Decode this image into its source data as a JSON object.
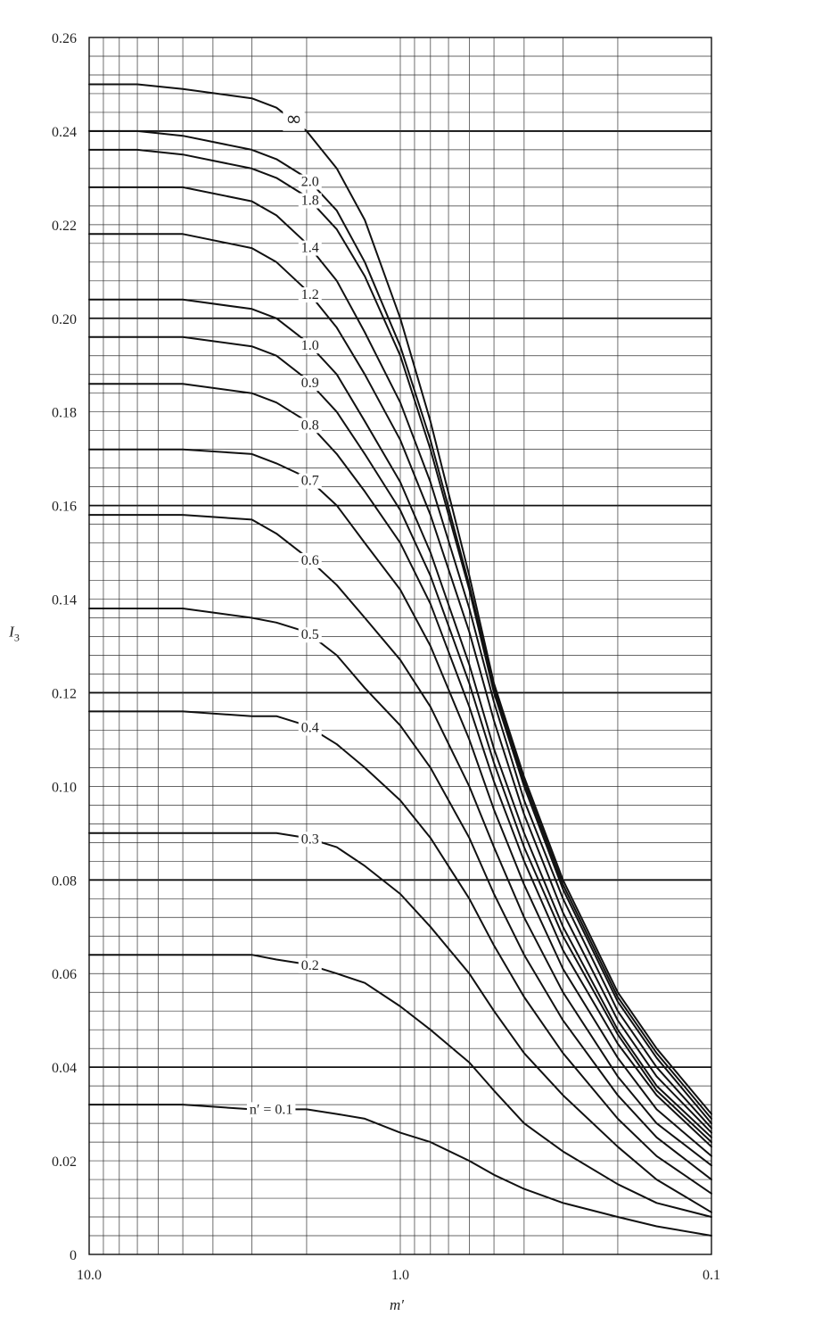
{
  "chart_data": {
    "type": "line",
    "xlabel": "m′",
    "ylabel": "I",
    "ylabel_subscript": "3",
    "x_scale": "log",
    "x_reversed": true,
    "xlim": [
      10.0,
      0.1
    ],
    "ylim": [
      0,
      0.26
    ],
    "x_tick_labels": [
      "10.0",
      "1.0",
      "0.1"
    ],
    "y_tick_labels": [
      "0",
      "0.02",
      "0.04",
      "0.06",
      "0.08",
      "0.10",
      "0.12",
      "0.14",
      "0.16",
      "0.18",
      "0.20",
      "0.22",
      "0.24",
      "0.26"
    ],
    "grid": true,
    "series": [
      {
        "name": "∞",
        "label": "∞",
        "x": [
          10,
          7,
          5,
          3,
          2.5,
          2,
          1.6,
          1.3,
          1.0,
          0.8,
          0.6,
          0.5,
          0.4,
          0.3,
          0.2,
          0.15,
          0.1
        ],
        "y": [
          0.25,
          0.25,
          0.249,
          0.247,
          0.245,
          0.24,
          0.232,
          0.221,
          0.2,
          0.178,
          0.145,
          0.122,
          0.102,
          0.08,
          0.056,
          0.044,
          0.03
        ]
      },
      {
        "name": "2.0",
        "label": "2.0",
        "x": [
          10,
          7,
          5,
          3,
          2.5,
          2,
          1.6,
          1.3,
          1.0,
          0.8,
          0.6,
          0.5,
          0.4,
          0.3,
          0.2,
          0.15,
          0.1
        ],
        "y": [
          0.24,
          0.24,
          0.239,
          0.236,
          0.234,
          0.23,
          0.223,
          0.212,
          0.194,
          0.174,
          0.143,
          0.121,
          0.101,
          0.079,
          0.055,
          0.043,
          0.029
        ]
      },
      {
        "name": "1.8",
        "label": "1.8",
        "x": [
          10,
          7,
          5,
          3,
          2.5,
          2,
          1.6,
          1.3,
          1.0,
          0.8,
          0.6,
          0.5,
          0.4,
          0.3,
          0.2,
          0.15,
          0.1
        ],
        "y": [
          0.236,
          0.236,
          0.235,
          0.232,
          0.23,
          0.226,
          0.219,
          0.209,
          0.192,
          0.172,
          0.142,
          0.12,
          0.1,
          0.078,
          0.054,
          0.042,
          0.028
        ]
      },
      {
        "name": "1.4",
        "label": "1.4",
        "x": [
          10,
          7,
          5,
          3,
          2.5,
          2,
          1.6,
          1.3,
          1.0,
          0.8,
          0.6,
          0.5,
          0.4,
          0.3,
          0.2,
          0.15,
          0.1
        ],
        "y": [
          0.228,
          0.228,
          0.228,
          0.225,
          0.222,
          0.216,
          0.208,
          0.197,
          0.182,
          0.165,
          0.138,
          0.118,
          0.097,
          0.076,
          0.052,
          0.04,
          0.027
        ]
      },
      {
        "name": "1.2",
        "label": "1.2",
        "x": [
          10,
          7,
          5,
          3,
          2.5,
          2,
          1.6,
          1.3,
          1.0,
          0.8,
          0.6,
          0.5,
          0.4,
          0.3,
          0.2,
          0.15,
          0.1
        ],
        "y": [
          0.218,
          0.218,
          0.218,
          0.215,
          0.212,
          0.206,
          0.198,
          0.188,
          0.174,
          0.158,
          0.133,
          0.114,
          0.094,
          0.073,
          0.05,
          0.038,
          0.026
        ]
      },
      {
        "name": "1.0",
        "label": "1.0",
        "x": [
          10,
          7,
          5,
          3,
          2.5,
          2,
          1.6,
          1.3,
          1.0,
          0.8,
          0.6,
          0.5,
          0.4,
          0.3,
          0.2,
          0.15,
          0.1
        ],
        "y": [
          0.204,
          0.204,
          0.204,
          0.202,
          0.2,
          0.195,
          0.188,
          0.178,
          0.165,
          0.15,
          0.126,
          0.108,
          0.09,
          0.07,
          0.048,
          0.036,
          0.025
        ]
      },
      {
        "name": "0.9",
        "label": "0.9",
        "x": [
          10,
          7,
          5,
          3,
          2.5,
          2,
          1.6,
          1.3,
          1.0,
          0.8,
          0.6,
          0.5,
          0.4,
          0.3,
          0.2,
          0.15,
          0.1
        ],
        "y": [
          0.196,
          0.196,
          0.196,
          0.194,
          0.192,
          0.187,
          0.18,
          0.171,
          0.159,
          0.145,
          0.122,
          0.105,
          0.087,
          0.068,
          0.047,
          0.035,
          0.024
        ]
      },
      {
        "name": "0.8",
        "label": "0.8",
        "x": [
          10,
          7,
          5,
          3,
          2.5,
          2,
          1.6,
          1.3,
          1.0,
          0.8,
          0.6,
          0.5,
          0.4,
          0.3,
          0.2,
          0.15,
          0.1
        ],
        "y": [
          0.186,
          0.186,
          0.186,
          0.184,
          0.182,
          0.178,
          0.171,
          0.163,
          0.152,
          0.139,
          0.117,
          0.101,
          0.084,
          0.065,
          0.045,
          0.034,
          0.023
        ]
      },
      {
        "name": "0.7",
        "label": "0.7",
        "x": [
          10,
          7,
          5,
          3,
          2.5,
          2,
          1.6,
          1.3,
          1.0,
          0.8,
          0.6,
          0.5,
          0.4,
          0.3,
          0.2,
          0.15,
          0.1
        ],
        "y": [
          0.172,
          0.172,
          0.172,
          0.171,
          0.169,
          0.166,
          0.16,
          0.152,
          0.142,
          0.13,
          0.11,
          0.095,
          0.079,
          0.061,
          0.042,
          0.031,
          0.021
        ]
      },
      {
        "name": "0.6",
        "label": "0.6",
        "x": [
          10,
          7,
          5,
          3,
          2.5,
          2,
          1.6,
          1.3,
          1.0,
          0.8,
          0.6,
          0.5,
          0.4,
          0.3,
          0.2,
          0.15,
          0.1
        ],
        "y": [
          0.158,
          0.158,
          0.158,
          0.157,
          0.154,
          0.149,
          0.143,
          0.136,
          0.127,
          0.117,
          0.1,
          0.087,
          0.072,
          0.056,
          0.038,
          0.028,
          0.019
        ]
      },
      {
        "name": "0.5",
        "label": "0.5",
        "x": [
          10,
          7,
          5,
          3,
          2.5,
          2,
          1.6,
          1.3,
          1.0,
          0.8,
          0.6,
          0.5,
          0.4,
          0.3,
          0.2,
          0.15,
          0.1
        ],
        "y": [
          0.138,
          0.138,
          0.138,
          0.136,
          0.135,
          0.133,
          0.128,
          0.121,
          0.113,
          0.104,
          0.089,
          0.077,
          0.064,
          0.05,
          0.034,
          0.025,
          0.016
        ]
      },
      {
        "name": "0.4",
        "label": "0.4",
        "x": [
          10,
          7,
          5,
          3,
          2.5,
          2,
          1.6,
          1.3,
          1.0,
          0.8,
          0.6,
          0.5,
          0.4,
          0.3,
          0.2,
          0.15,
          0.1
        ],
        "y": [
          0.116,
          0.116,
          0.116,
          0.115,
          0.115,
          0.113,
          0.109,
          0.104,
          0.097,
          0.089,
          0.076,
          0.066,
          0.055,
          0.043,
          0.029,
          0.021,
          0.013
        ]
      },
      {
        "name": "0.3",
        "label": "0.3",
        "x": [
          10,
          7,
          5,
          3,
          2.5,
          2,
          1.6,
          1.3,
          1.0,
          0.8,
          0.6,
          0.5,
          0.4,
          0.3,
          0.2,
          0.15,
          0.1
        ],
        "y": [
          0.09,
          0.09,
          0.09,
          0.09,
          0.09,
          0.089,
          0.087,
          0.083,
          0.077,
          0.07,
          0.06,
          0.052,
          0.043,
          0.034,
          0.023,
          0.016,
          0.009
        ]
      },
      {
        "name": "0.2",
        "label": "0.2",
        "x": [
          10,
          7,
          5,
          3,
          2.5,
          2,
          1.6,
          1.3,
          1.0,
          0.8,
          0.6,
          0.5,
          0.4,
          0.3,
          0.2,
          0.15,
          0.1
        ],
        "y": [
          0.064,
          0.064,
          0.064,
          0.064,
          0.063,
          0.062,
          0.06,
          0.058,
          0.053,
          0.048,
          0.041,
          0.035,
          0.028,
          0.022,
          0.015,
          0.011,
          0.008
        ]
      },
      {
        "name": "n′ = 0.1",
        "label": "n′ = 0.1",
        "x": [
          10,
          7,
          5,
          3,
          2.5,
          2,
          1.6,
          1.3,
          1.0,
          0.8,
          0.6,
          0.5,
          0.4,
          0.3,
          0.2,
          0.15,
          0.1
        ],
        "y": [
          0.032,
          0.032,
          0.032,
          0.031,
          0.031,
          0.031,
          0.03,
          0.029,
          0.026,
          0.024,
          0.02,
          0.017,
          0.014,
          0.011,
          0.008,
          0.006,
          0.004
        ]
      }
    ]
  }
}
